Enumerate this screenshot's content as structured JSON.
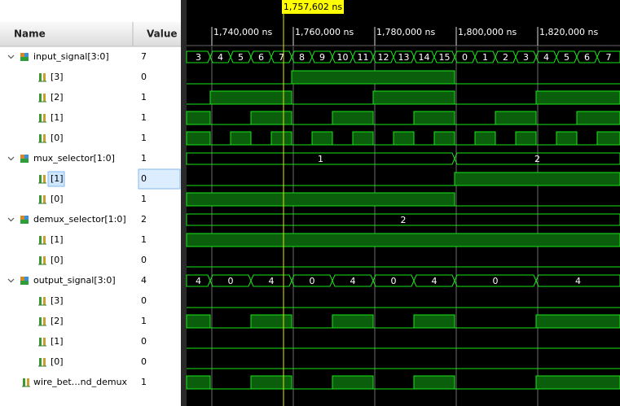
{
  "cursor": {
    "value": 1757602,
    "label": "1,757,602 ns"
  },
  "columns": {
    "name": "Name",
    "value": "Value"
  },
  "time_axis": {
    "range": [
      1733800,
      1840200
    ],
    "ticks": [
      {
        "value": 1740000,
        "label": "1,740,000 ns"
      },
      {
        "value": 1760000,
        "label": "1,760,000 ns"
      },
      {
        "value": 1780000,
        "label": "1,780,000 ns"
      },
      {
        "value": 1800000,
        "label": "1,800,000 ns"
      },
      {
        "value": 1820000,
        "label": "1,820,000 ns"
      }
    ]
  },
  "signals": [
    {
      "name": "input_signal[3:0]",
      "value": 7,
      "kind": "bus",
      "t": [
        1733800,
        1739600,
        1744600,
        1749600,
        1754600,
        1759600,
        1764600,
        1769600,
        1774600,
        1779600,
        1784600,
        1789600,
        1794600,
        1799600,
        1804600,
        1809600,
        1814600,
        1819600,
        1824600,
        1829600,
        1834600
      ],
      "v": [
        3,
        4,
        5,
        6,
        7,
        8,
        9,
        10,
        11,
        12,
        13,
        14,
        15,
        0,
        1,
        2,
        3,
        4,
        5,
        6,
        7
      ]
    },
    {
      "name": "[3]",
      "value": 0,
      "kind": "bit",
      "t": [
        1733800,
        1759600,
        1799600
      ],
      "v": [
        0,
        1,
        0
      ]
    },
    {
      "name": "[2]",
      "value": 1,
      "kind": "bit",
      "t": [
        1733800,
        1739600,
        1759600,
        1779600,
        1799600,
        1819600
      ],
      "v": [
        0,
        1,
        0,
        1,
        0,
        1
      ]
    },
    {
      "name": "[1]",
      "value": 1,
      "kind": "bit",
      "t": [
        1733800,
        1739600,
        1749600,
        1759600,
        1769600,
        1779600,
        1789600,
        1799600,
        1809600,
        1819600,
        1829600
      ],
      "v": [
        1,
        0,
        1,
        0,
        1,
        0,
        1,
        0,
        1,
        0,
        1
      ]
    },
    {
      "name": "[0]",
      "value": 1,
      "kind": "bit",
      "t": [
        1733800,
        1739600,
        1744600,
        1749600,
        1754600,
        1759600,
        1764600,
        1769600,
        1774600,
        1779600,
        1784600,
        1789600,
        1794600,
        1799600,
        1804600,
        1809600,
        1814600,
        1819600,
        1824600,
        1829600,
        1834600
      ],
      "v": [
        1,
        0,
        1,
        0,
        1,
        0,
        1,
        0,
        1,
        0,
        1,
        0,
        1,
        0,
        1,
        0,
        1,
        0,
        1,
        0,
        1
      ]
    },
    {
      "name": "mux_selector[1:0]",
      "value": 1,
      "kind": "bus",
      "t": [
        1733800,
        1799600
      ],
      "v": [
        1,
        2
      ]
    },
    {
      "name": "[1]",
      "value": 0,
      "kind": "bit",
      "selected": true,
      "t": [
        1733800,
        1799600
      ],
      "v": [
        0,
        1
      ]
    },
    {
      "name": "[0]",
      "value": 1,
      "kind": "bit",
      "t": [
        1733800,
        1799600
      ],
      "v": [
        1,
        0
      ]
    },
    {
      "name": "demux_selector[1:0]",
      "value": 2,
      "kind": "bus",
      "t": [
        1733800
      ],
      "v": [
        2
      ]
    },
    {
      "name": "[1]",
      "value": 1,
      "kind": "bit",
      "t": [
        1733800
      ],
      "v": [
        1
      ]
    },
    {
      "name": "[0]",
      "value": 0,
      "kind": "bit",
      "t": [
        1733800
      ],
      "v": [
        0
      ]
    },
    {
      "name": "output_signal[3:0]",
      "value": 4,
      "kind": "bus",
      "t": [
        1733800,
        1739600,
        1749600,
        1759600,
        1769600,
        1779600,
        1789600,
        1799600,
        1819600
      ],
      "v": [
        4,
        0,
        4,
        0,
        4,
        0,
        4,
        0,
        4
      ]
    },
    {
      "name": "[3]",
      "value": 0,
      "kind": "bit",
      "t": [
        1733800
      ],
      "v": [
        0
      ]
    },
    {
      "name": "[2]",
      "value": 1,
      "kind": "bit",
      "t": [
        1733800,
        1739600,
        1749600,
        1759600,
        1769600,
        1779600,
        1789600,
        1799600,
        1819600
      ],
      "v": [
        1,
        0,
        1,
        0,
        1,
        0,
        1,
        0,
        1
      ]
    },
    {
      "name": "[1]",
      "value": 0,
      "kind": "bit",
      "t": [
        1733800
      ],
      "v": [
        0
      ]
    },
    {
      "name": "[0]",
      "value": 0,
      "kind": "bit",
      "t": [
        1733800
      ],
      "v": [
        0
      ]
    },
    {
      "name": "wire_bet…nd_demux",
      "value": 1,
      "kind": "wire",
      "t": [
        1733800,
        1739600,
        1749600,
        1759600,
        1769600,
        1779600,
        1789600,
        1799600,
        1819600
      ],
      "v": [
        1,
        0,
        1,
        0,
        1,
        0,
        1,
        0,
        1
      ]
    }
  ]
}
